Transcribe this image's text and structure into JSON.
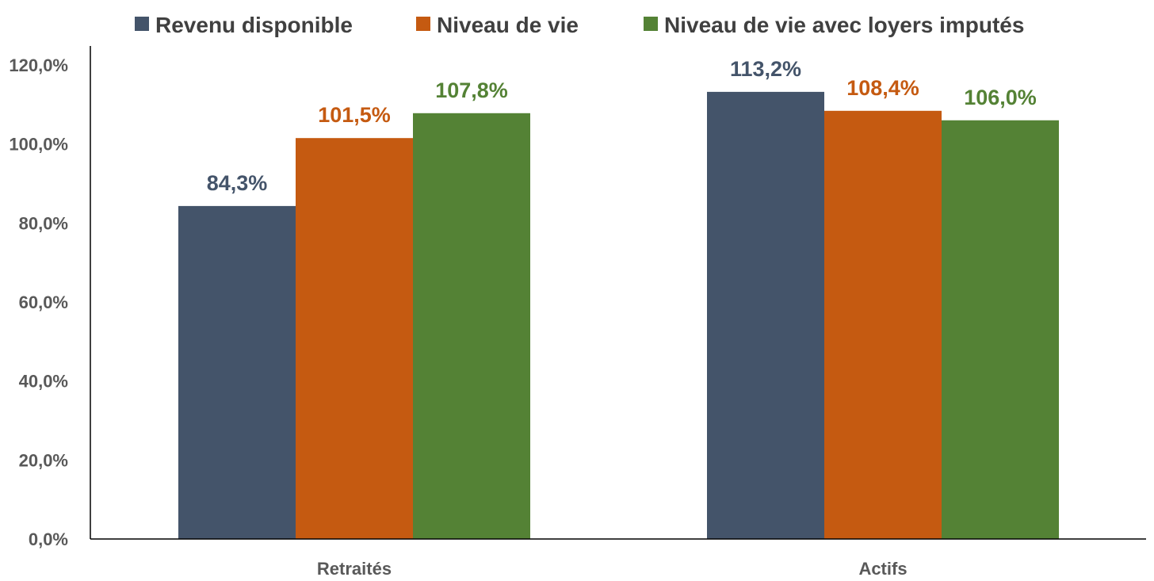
{
  "chart_data": {
    "type": "bar",
    "categories": [
      "Retraités",
      "Actifs"
    ],
    "series": [
      {
        "name": "Revenu disponible",
        "color": "#44546a",
        "values": [
          84.3,
          113.2
        ],
        "labels": [
          "84,3%",
          "113,2%"
        ]
      },
      {
        "name": "Niveau de vie",
        "color": "#c55a11",
        "values": [
          101.5,
          108.4
        ],
        "labels": [
          "101,5%",
          "108,4%"
        ]
      },
      {
        "name": "Niveau de vie avec loyers imputés",
        "color": "#548235",
        "values": [
          107.8,
          106.0
        ],
        "labels": [
          "107,8%",
          "106,0%"
        ]
      }
    ],
    "y_ticks": [
      "0,0%",
      "20,0%",
      "40,0%",
      "60,0%",
      "80,0%",
      "100,0%",
      "120,0%"
    ],
    "ylim": [
      0,
      120
    ],
    "grid": false,
    "legend": "top",
    "title": "",
    "xlabel": "",
    "ylabel": ""
  }
}
